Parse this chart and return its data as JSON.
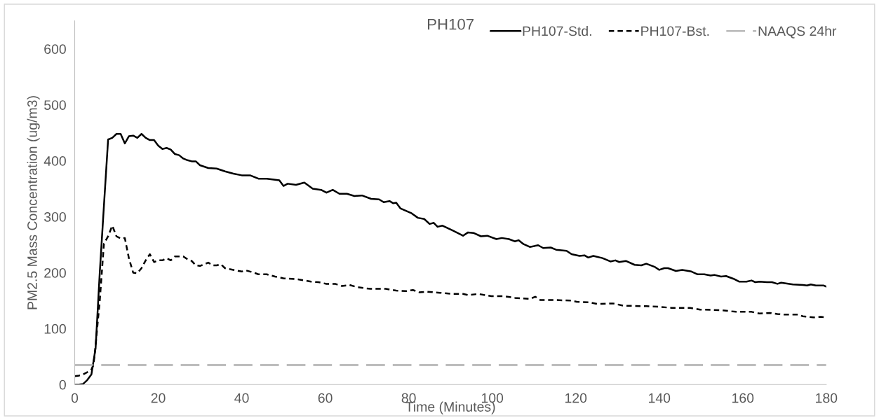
{
  "chart_data": {
    "type": "line",
    "title": "PH107",
    "xlabel": "Time (Minutes)",
    "ylabel": "PM2.5 Mass Concentration (ug/m3)",
    "xlim": [
      0,
      180
    ],
    "xticks": [
      0,
      20,
      40,
      60,
      80,
      100,
      120,
      140,
      160,
      180
    ],
    "ylim": [
      0,
      650
    ],
    "yticks": [
      0,
      100,
      200,
      300,
      400,
      500,
      600
    ],
    "grid": false,
    "legend": "top right",
    "marker": "none",
    "series": [
      {
        "name": "PH107-Std.",
        "color": "#000000",
        "line_style": "solid",
        "x": [
          0,
          1,
          2,
          3,
          4,
          5,
          6,
          7,
          8,
          9,
          10,
          11,
          12,
          13,
          14,
          15,
          16,
          17,
          18,
          19,
          20,
          21,
          22,
          23,
          24,
          25,
          26,
          27,
          28,
          29,
          30,
          32,
          34,
          36,
          38,
          40,
          42,
          44,
          46,
          48,
          49,
          50,
          51,
          53,
          55,
          57,
          59,
          60.3,
          61.8,
          63.4,
          65.2,
          67,
          68.8,
          71,
          72.9,
          74,
          75.4,
          76.3,
          77,
          78,
          80.7,
          82.2,
          83.7,
          85,
          86,
          86.9,
          88.1,
          90.6,
          93,
          94.2,
          95.5,
          97.3,
          98.8,
          101,
          102.3,
          104,
          105.4,
          106.3,
          107.5,
          109,
          111,
          112.2,
          114,
          115.3,
          117.8,
          119,
          120.9,
          122.1,
          123,
          124.2,
          126.4,
          128.3,
          129.5,
          130.4,
          132,
          134.1,
          135.7,
          136.9,
          139,
          140,
          141.2,
          142.1,
          144,
          145.5,
          147.7,
          149.2,
          150.8,
          152.3,
          153.2,
          154.8,
          156,
          157.8,
          159.1,
          160.9,
          162.1,
          163,
          164,
          165.8,
          167,
          168.3,
          169.2,
          172,
          174.4,
          175.4,
          176.3,
          177.5,
          179.4,
          180
        ],
        "values": [
          0,
          0,
          1,
          8,
          18,
          65,
          200,
          320,
          438,
          441,
          448,
          448,
          431,
          444,
          445,
          441,
          448,
          441,
          437,
          437,
          427,
          421,
          423,
          420,
          412,
          410,
          404,
          401,
          399,
          399,
          392,
          387,
          386,
          381,
          377,
          374,
          374,
          368,
          368,
          366,
          365,
          355,
          359,
          357,
          361,
          350,
          348,
          343,
          348,
          341,
          341,
          337,
          338,
          332,
          331,
          326,
          328,
          324,
          325,
          315,
          306,
          298,
          296,
          287,
          289,
          282,
          284,
          275,
          266,
          272,
          271,
          265,
          266,
          260,
          262,
          260,
          256,
          258,
          251,
          246,
          249,
          244,
          245,
          241,
          239,
          233,
          230,
          231,
          227,
          230,
          226,
          220,
          222,
          219,
          221,
          214,
          213,
          216,
          210,
          205,
          208,
          208,
          203,
          205,
          202,
          197,
          197,
          195,
          196,
          193,
          194,
          189,
          184,
          184,
          186,
          183,
          184,
          183,
          183,
          180,
          182,
          179,
          178,
          177,
          179,
          177,
          177,
          175
        ]
      },
      {
        "name": "PH107-Bst.",
        "color": "#000000",
        "line_style": "dashed",
        "x": [
          0,
          1,
          2,
          3,
          4,
          4.5,
          5,
          6,
          7,
          8,
          9,
          10,
          11,
          12,
          13,
          14,
          15,
          16,
          17,
          18,
          19,
          20,
          21,
          22,
          23,
          24,
          25,
          26,
          27,
          28,
          29,
          30,
          31,
          32,
          33,
          34,
          35,
          36,
          38,
          40,
          41,
          43,
          44,
          46,
          48,
          50,
          53.5,
          56.6,
          58.4,
          60.3,
          62.4,
          64,
          65.8,
          67.7,
          70.8,
          74.5,
          77,
          79.4,
          81,
          82.5,
          84.4,
          87.5,
          90.6,
          93,
          94.2,
          96.7,
          99.8,
          102.8,
          105.4,
          109,
          110.3,
          111.5,
          115.3,
          119,
          120.2,
          123.3,
          125.2,
          128.9,
          131.4,
          136.9,
          140,
          143,
          147.4,
          149.8,
          154.8,
          158.4,
          162.1,
          164,
          166.5,
          168.3,
          170.2,
          173.2,
          174.4,
          176.9,
          178.7,
          180
        ],
        "values": [
          15,
          16,
          18,
          22,
          27,
          35,
          70,
          150,
          252,
          265,
          284,
          265,
          261,
          262,
          225,
          200,
          199,
          208,
          222,
          233,
          219,
          222,
          222,
          226,
          222,
          229,
          229,
          229,
          224,
          221,
          213,
          212,
          215,
          218,
          213,
          213,
          215,
          208,
          205,
          202,
          204,
          200,
          197,
          197,
          193,
          190,
          188,
          184,
          183,
          180,
          180,
          176,
          178,
          174,
          171,
          171,
          168,
          167,
          169,
          165,
          166,
          164,
          162,
          162,
          160,
          162,
          158,
          158,
          155,
          153,
          157,
          151,
          151,
          150,
          148,
          147,
          144,
          145,
          141,
          140,
          139,
          137,
          137,
          134,
          133,
          130,
          130,
          127,
          128,
          126,
          125,
          125,
          122,
          120,
          121,
          120
        ]
      }
    ],
    "ref_lines": [
      {
        "axis": "y",
        "value": 35,
        "label": "NAAQS 24hr",
        "color": "#a6a6a6",
        "line_style": "dashed"
      }
    ]
  }
}
